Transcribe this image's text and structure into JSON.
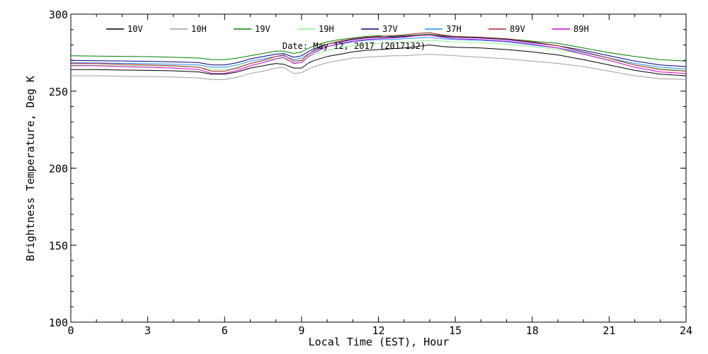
{
  "chart_data": {
    "type": "line",
    "annotation": "Date: May 12, 2017 (2017132)",
    "xlabel": "Local Time (EST), Hour",
    "ylabel": "Brightness Temperature, Deg K",
    "xlim": [
      0,
      24
    ],
    "ylim": [
      100,
      300
    ],
    "xticks": [
      0,
      3,
      6,
      9,
      12,
      15,
      18,
      21,
      24
    ],
    "yticks": [
      100,
      150,
      200,
      250,
      300
    ],
    "grid": false,
    "legend_position": "top",
    "x": [
      0,
      1,
      2,
      3,
      4,
      5,
      5.5,
      6,
      6.5,
      7,
      7.5,
      8,
      8.3,
      8.7,
      9,
      9.3,
      9.5,
      10,
      10.5,
      11,
      11.5,
      12,
      12.5,
      13,
      13.5,
      14,
      14.5,
      15,
      16,
      17,
      18,
      19,
      20,
      21,
      22,
      23,
      24
    ],
    "series": [
      {
        "name": "10V",
        "color": "#000000",
        "values": [
          264.0,
          264.0,
          263.7,
          263.5,
          263.2,
          262.5,
          261.0,
          261.0,
          262.5,
          265.0,
          266.5,
          268.0,
          267.5,
          265.0,
          265.0,
          268.5,
          270.0,
          272.5,
          274.0,
          275.5,
          276.5,
          277.0,
          277.5,
          278.0,
          279.0,
          280.0,
          279.0,
          278.5,
          278.0,
          277.0,
          275.5,
          273.5,
          270.5,
          267.0,
          263.5,
          261.0,
          260.0
        ]
      },
      {
        "name": "10H",
        "color": "#a0a0a0",
        "values": [
          260.0,
          260.0,
          259.7,
          259.5,
          259.2,
          258.5,
          257.5,
          257.5,
          259.0,
          261.5,
          263.0,
          265.0,
          265.5,
          261.5,
          262.0,
          264.5,
          266.0,
          268.5,
          270.0,
          271.5,
          272.0,
          272.5,
          273.0,
          273.0,
          273.5,
          274.0,
          273.5,
          273.0,
          272.0,
          271.0,
          269.5,
          268.0,
          266.0,
          263.0,
          260.0,
          258.0,
          257.5
        ]
      },
      {
        "name": "19V",
        "color": "#008000",
        "values": [
          273.0,
          272.8,
          272.6,
          272.4,
          272.0,
          271.5,
          270.5,
          270.5,
          271.5,
          273.0,
          274.5,
          276.0,
          276.0,
          274.5,
          275.5,
          278.0,
          279.5,
          282.0,
          283.5,
          284.5,
          285.5,
          286.0,
          285.5,
          286.0,
          286.5,
          287.0,
          286.0,
          285.5,
          285.0,
          284.0,
          282.5,
          281.0,
          278.0,
          275.0,
          272.5,
          270.5,
          269.5
        ]
      },
      {
        "name": "19H",
        "color": "#90ee90",
        "values": [
          267.0,
          267.0,
          266.7,
          266.5,
          266.2,
          265.5,
          264.0,
          264.0,
          265.5,
          268.0,
          269.5,
          271.0,
          271.0,
          268.5,
          269.5,
          272.5,
          274.0,
          276.5,
          278.0,
          279.5,
          280.5,
          281.0,
          281.5,
          282.0,
          282.5,
          283.0,
          282.5,
          282.0,
          281.5,
          280.5,
          279.0,
          277.0,
          274.0,
          270.5,
          267.0,
          264.5,
          263.5
        ]
      },
      {
        "name": "37V",
        "color": "#000080",
        "values": [
          270.0,
          269.8,
          269.6,
          269.4,
          269.0,
          268.5,
          267.0,
          267.0,
          268.5,
          271.0,
          272.5,
          274.0,
          274.5,
          272.0,
          273.0,
          276.0,
          277.5,
          280.5,
          282.0,
          283.5,
          284.5,
          285.0,
          285.0,
          285.5,
          286.0,
          286.5,
          285.5,
          285.0,
          284.5,
          283.5,
          281.5,
          279.5,
          276.5,
          273.0,
          269.5,
          267.0,
          266.0
        ]
      },
      {
        "name": "37H",
        "color": "#1e90ff",
        "values": [
          268.5,
          268.3,
          268.1,
          267.9,
          267.5,
          267.0,
          265.5,
          265.5,
          267.0,
          269.5,
          271.0,
          272.5,
          273.0,
          270.5,
          271.5,
          274.5,
          276.0,
          279.0,
          280.5,
          282.0,
          283.0,
          283.5,
          283.5,
          284.0,
          284.5,
          285.0,
          284.0,
          283.5,
          283.0,
          282.0,
          280.0,
          278.0,
          275.0,
          271.5,
          268.0,
          265.5,
          264.5
        ]
      },
      {
        "name": "89V",
        "color": "#b22222",
        "values": [
          268.0,
          268.0,
          267.5,
          267.0,
          266.5,
          265.5,
          263.0,
          263.0,
          265.0,
          268.0,
          270.0,
          272.5,
          273.5,
          269.5,
          270.0,
          274.5,
          276.5,
          280.5,
          282.5,
          284.0,
          285.0,
          285.5,
          286.0,
          286.5,
          287.5,
          288.0,
          286.5,
          285.5,
          285.0,
          284.0,
          282.0,
          279.5,
          275.5,
          271.5,
          267.0,
          264.0,
          263.0
        ]
      },
      {
        "name": "89H",
        "color": "#cc00cc",
        "values": [
          266.5,
          266.5,
          266.0,
          265.5,
          265.0,
          264.0,
          261.5,
          261.5,
          263.5,
          266.5,
          268.5,
          271.0,
          272.0,
          268.0,
          268.5,
          273.0,
          275.0,
          279.0,
          281.0,
          282.5,
          283.5,
          284.0,
          284.5,
          285.0,
          286.0,
          286.5,
          285.0,
          284.0,
          283.5,
          282.5,
          280.5,
          278.0,
          274.0,
          270.0,
          265.5,
          262.5,
          261.5
        ]
      }
    ]
  }
}
